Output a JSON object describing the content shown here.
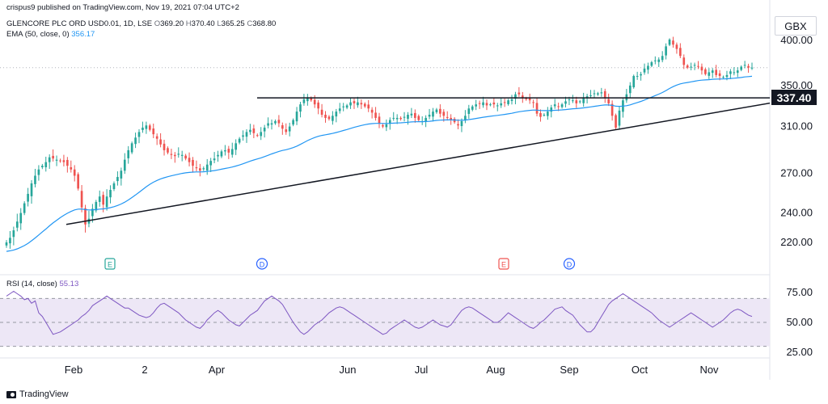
{
  "header": {
    "author_line": "crispus9 published on TradingView.com, Nov 19, 2021 07:04 UTC+2",
    "symbol": "GLENCORE PLC ORD USD0.01, 1D, LSE",
    "ohlc": {
      "o_label": "O",
      "o": "369.20",
      "h_label": "H",
      "h": "370.40",
      "l_label": "L",
      "l": "365.25",
      "c_label": "C",
      "c": "368.80"
    },
    "ema_label": "EMA (50, close, 0)",
    "ema_value": "356.17",
    "rsi_label": "RSI (14, close)",
    "rsi_value": "55.13"
  },
  "currency": "GBX",
  "price_tag": "337.40",
  "brand": "TradingView",
  "colors": {
    "up": "#26a69a",
    "down": "#ef5350",
    "ema": "#2196f3",
    "rsi": "#7e57c2",
    "rsi_band": "#ede7f6",
    "line": "#131722"
  },
  "chart_data": {
    "type": "candlestick",
    "price_axis": {
      "ticks": [
        "400.00",
        "350.00",
        "310.00",
        "270.00",
        "240.00",
        "220.00"
      ],
      "tick_values": [
        400,
        350,
        310,
        270,
        240,
        220
      ],
      "scale": "log"
    },
    "x_axis_labels": [
      "Feb",
      "2",
      "Apr",
      "Jun",
      "Jul",
      "Aug",
      "Sep",
      "Oct",
      "Nov"
    ],
    "date_range": [
      "2021-01-11",
      "2021-11-19"
    ],
    "events": [
      "E",
      "D",
      "E",
      "D"
    ],
    "close_series": [
      220,
      223,
      228,
      234,
      240,
      247,
      254,
      262,
      268,
      273,
      276,
      279,
      283,
      282,
      281,
      280,
      279,
      276,
      273,
      268,
      258,
      244,
      232,
      236,
      243,
      248,
      252,
      246,
      252,
      257,
      262,
      267,
      272,
      281,
      289,
      295,
      300,
      305,
      309,
      311,
      307,
      303,
      299,
      294,
      289,
      287,
      285,
      284,
      286,
      285,
      282,
      279,
      276,
      274,
      272,
      274,
      277,
      280,
      282,
      285,
      288,
      289,
      287,
      290,
      295,
      299,
      302,
      305,
      307,
      304,
      302,
      305,
      309,
      313,
      313,
      315,
      313,
      308,
      305,
      310,
      316,
      324,
      331,
      336,
      338,
      335,
      331,
      327,
      321,
      318,
      317,
      320,
      324,
      327,
      329,
      330,
      333,
      332,
      333,
      331,
      329,
      327,
      323,
      318,
      313,
      310,
      312,
      316,
      318,
      318,
      317,
      319,
      321,
      322,
      318,
      316,
      315,
      318,
      321,
      324,
      326,
      322,
      320,
      318,
      316,
      314,
      311,
      315,
      320,
      327,
      329,
      331,
      332,
      333,
      330,
      331,
      331,
      330,
      332,
      333,
      335,
      336,
      341,
      341,
      337,
      336,
      335,
      333,
      322,
      319,
      321,
      324,
      328,
      331,
      329,
      331,
      334,
      336,
      335,
      332,
      334,
      338,
      339,
      340,
      342,
      342,
      343,
      338,
      332,
      320,
      309,
      325,
      335,
      341,
      350,
      360,
      360,
      362,
      368,
      371,
      375,
      377,
      378,
      382,
      393,
      401,
      395,
      390,
      382,
      372,
      369,
      370,
      372,
      370,
      366,
      362,
      364,
      366,
      361,
      360,
      359,
      361,
      365,
      364,
      366,
      370,
      372,
      369,
      369
    ],
    "ema_50": {
      "label": "EMA (50, close, 0)",
      "last": 356.17
    },
    "annotations": {
      "horizontal_line": 337.4,
      "trendline": {
        "from": [
          234,
          232
        ],
        "to": [
          980,
          337
        ]
      }
    },
    "rsi": {
      "label": "RSI (14, close)",
      "last": 55.13,
      "axis_ticks": [
        "75.00",
        "50.00",
        "25.00"
      ],
      "tick_values": [
        75,
        50,
        25
      ],
      "band": [
        30,
        70
      ],
      "values": [
        72,
        74,
        76,
        74,
        72,
        69,
        70,
        66,
        68,
        58,
        55,
        50,
        45,
        40,
        41,
        42,
        44,
        46,
        48,
        50,
        52,
        55,
        57,
        60,
        64,
        66,
        68,
        70,
        72,
        70,
        68,
        66,
        64,
        62,
        62,
        60,
        58,
        56,
        55,
        54,
        55,
        58,
        62,
        65,
        66,
        64,
        62,
        60,
        58,
        55,
        52,
        50,
        48,
        46,
        45,
        48,
        52,
        55,
        58,
        60,
        58,
        55,
        52,
        50,
        48,
        47,
        50,
        53,
        56,
        58,
        60,
        64,
        68,
        70,
        72,
        70,
        68,
        65,
        60,
        55,
        50,
        46,
        42,
        40,
        42,
        45,
        48,
        50,
        52,
        55,
        58,
        60,
        62,
        63,
        62,
        60,
        58,
        56,
        54,
        52,
        50,
        48,
        46,
        44,
        42,
        40,
        41,
        44,
        46,
        48,
        50,
        52,
        50,
        48,
        46,
        45,
        46,
        48,
        50,
        52,
        50,
        48,
        47,
        46,
        48,
        52,
        56,
        60,
        62,
        63,
        62,
        60,
        58,
        56,
        54,
        52,
        50,
        50,
        52,
        55,
        58,
        56,
        54,
        52,
        50,
        48,
        46,
        45,
        47,
        50,
        52,
        55,
        58,
        61,
        62,
        63,
        60,
        58,
        56,
        52,
        48,
        45,
        42,
        42,
        45,
        50,
        55,
        60,
        65,
        68,
        70,
        72,
        74,
        72,
        70,
        68,
        66,
        64,
        62,
        60,
        58,
        55,
        52,
        50,
        48,
        46,
        48,
        50,
        52,
        54,
        56,
        58,
        56,
        54,
        52,
        50,
        48,
        46,
        48,
        50,
        52,
        55,
        58,
        60,
        61,
        60,
        58,
        56,
        55
      ]
    }
  }
}
